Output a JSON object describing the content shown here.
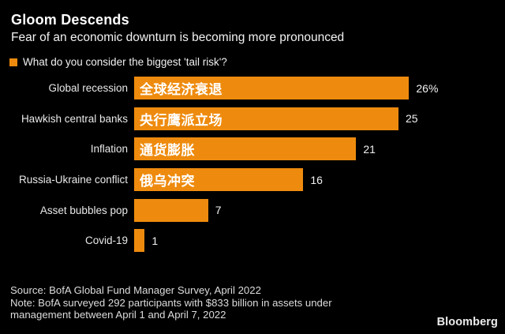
{
  "header": {
    "title": "Gloom Descends",
    "subtitle": "Fear of an economic downturn is becoming more pronounced"
  },
  "legend": {
    "label": "What do you consider the biggest 'tail risk'?"
  },
  "chart_data": {
    "type": "bar",
    "orientation": "horizontal",
    "title": "What do you consider the biggest 'tail risk'?",
    "categories": [
      "Global recession",
      "Hawkish central banks",
      "Inflation",
      "Russia-Ukraine conflict",
      "Asset bubbles pop",
      "Covid-19"
    ],
    "values": [
      26,
      25,
      21,
      16,
      7,
      1
    ],
    "value_labels": [
      "26%",
      "25",
      "21",
      "16",
      "7",
      "1"
    ],
    "bar_annotations": [
      "全球经济衰退",
      "央行鹰派立场",
      "通货膨胀",
      "俄乌冲突",
      "",
      ""
    ],
    "unit": "percent",
    "xlim": [
      0,
      34.6
    ],
    "grid": false,
    "legend_position": "top-left"
  },
  "footer": {
    "source": "Source: BofA Global Fund Manager Survey, April 2022",
    "note_lines": [
      "Note: BofA surveyed 292 participants with $833 billion in assets under",
      "management between April 1 and April 7, 2022"
    ],
    "brand": "Bloomberg"
  },
  "colors": {
    "background": "#000000",
    "bar": "#EE8B0E",
    "title_text": "#FFFFFF",
    "body_text": "#E9E9E9",
    "footer_text": "#DCDCDC"
  }
}
